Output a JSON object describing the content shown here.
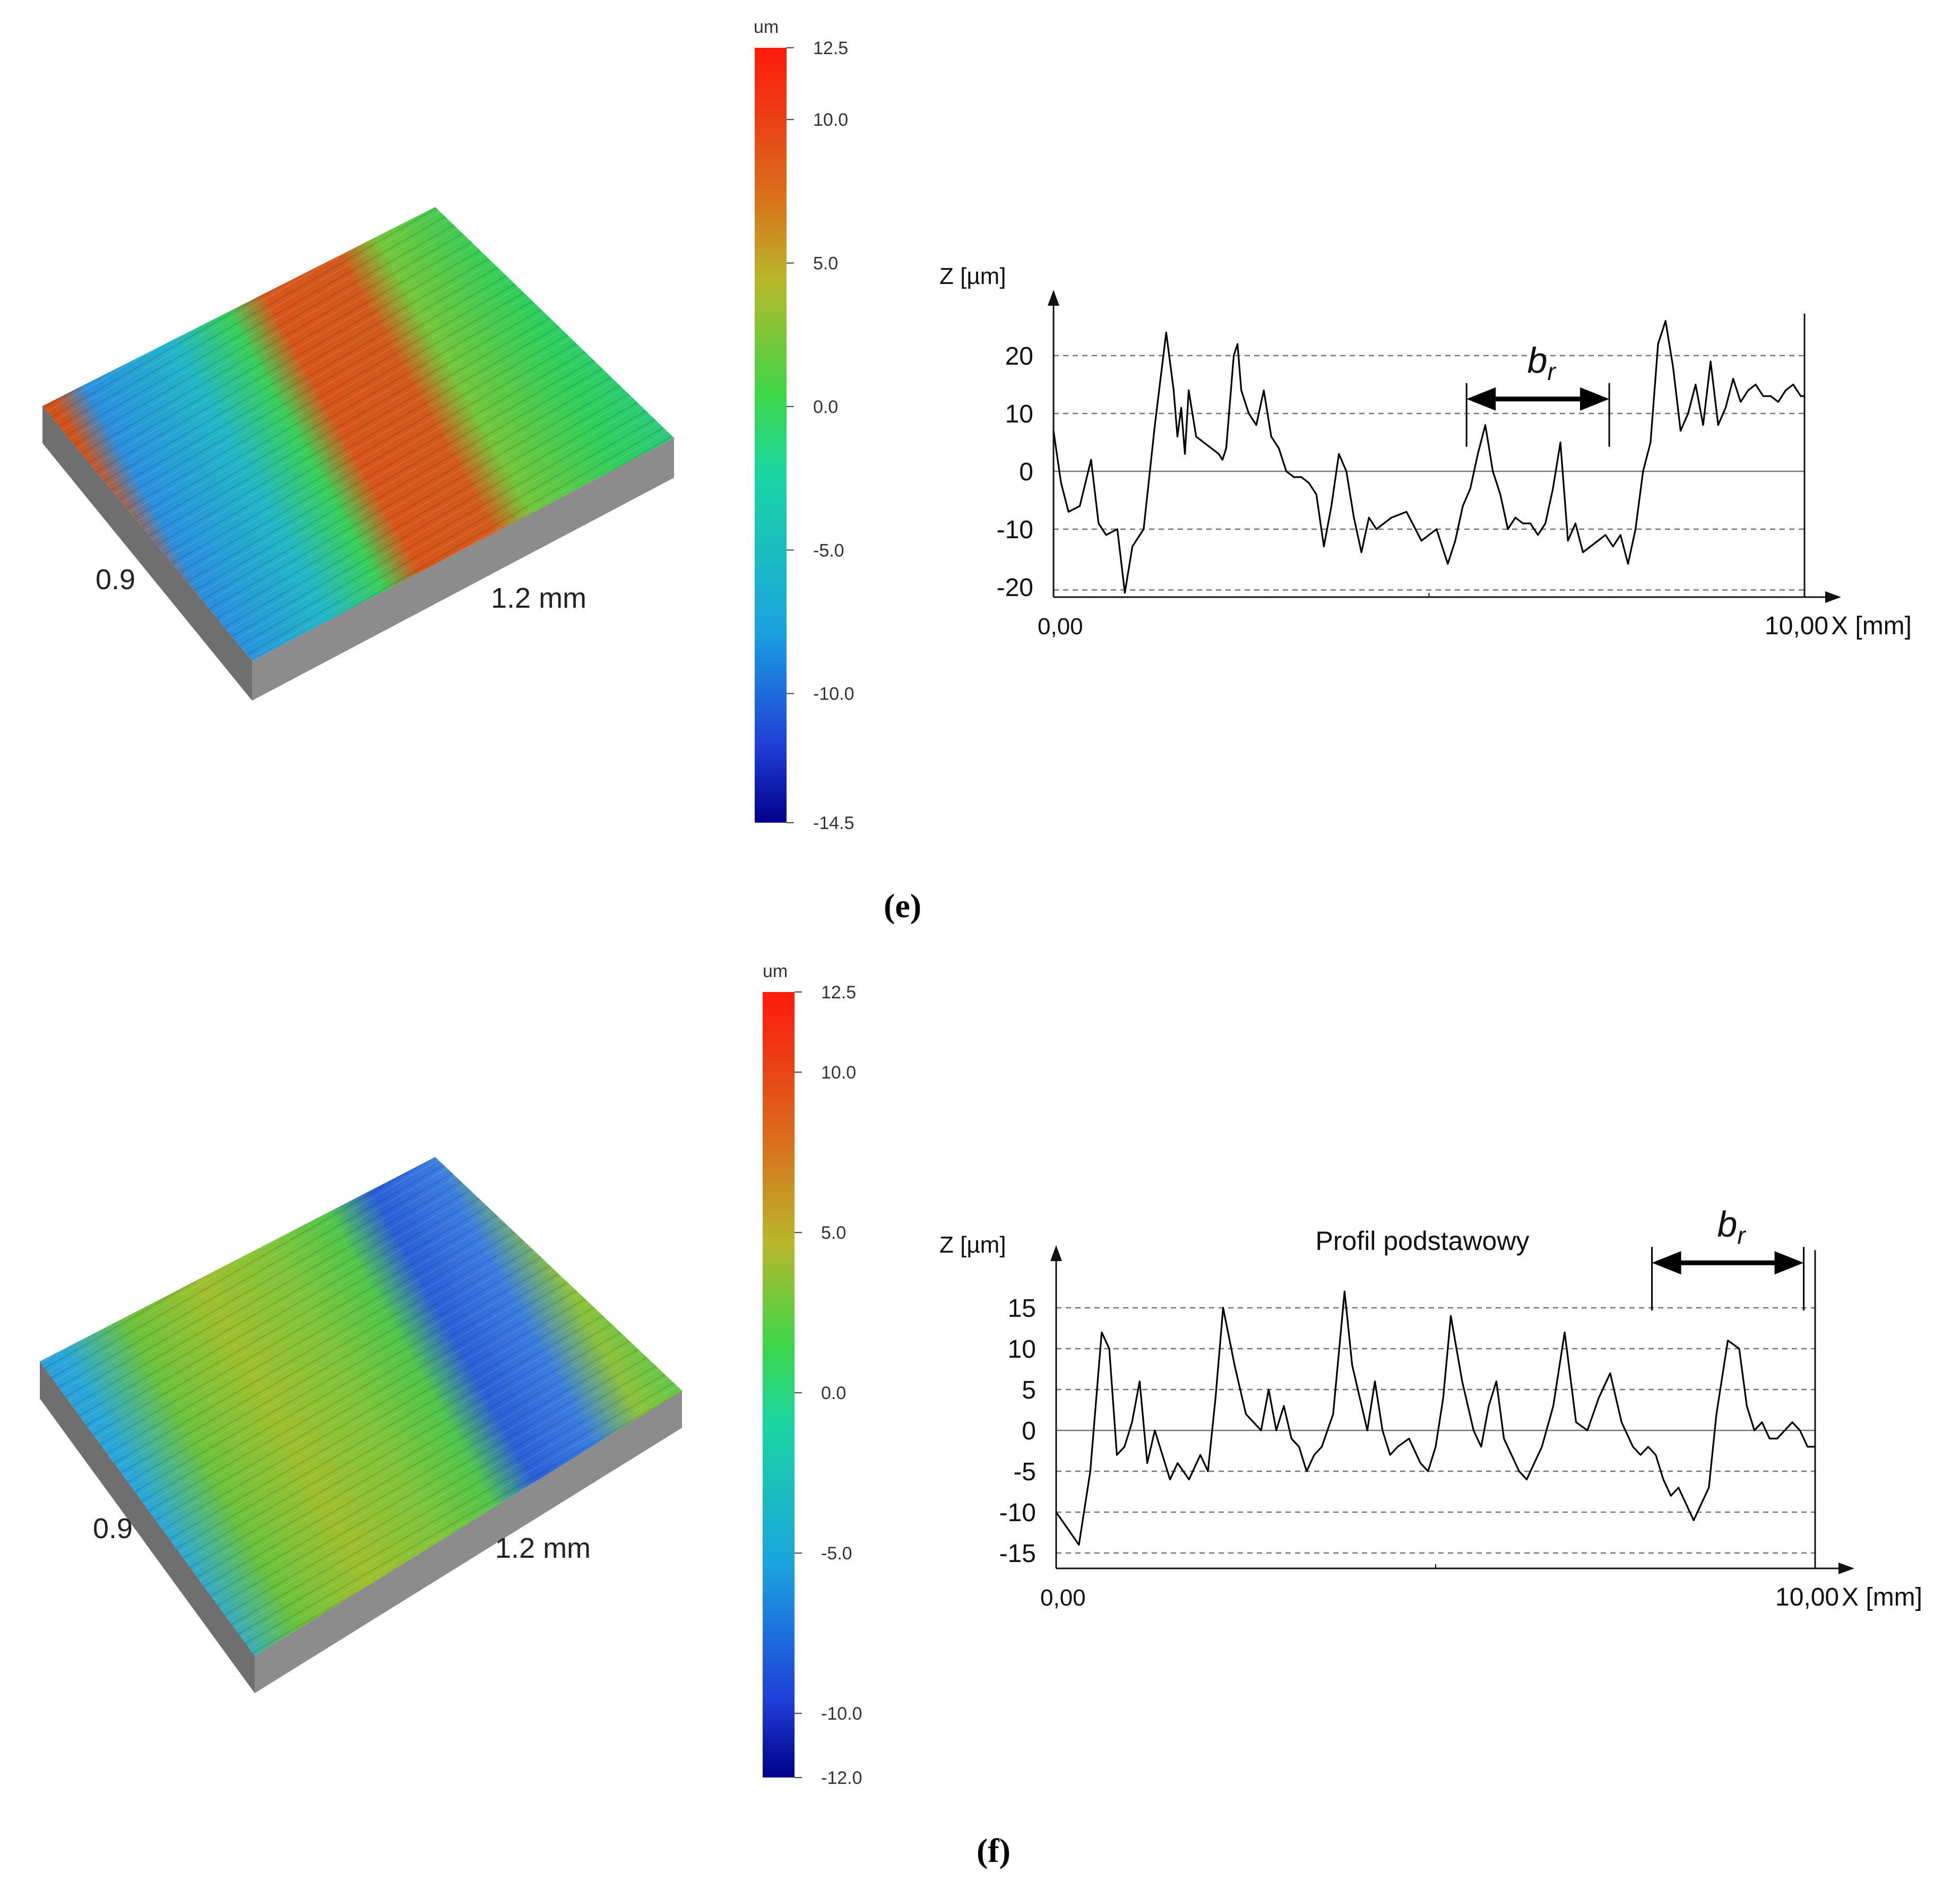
{
  "panels": [
    {
      "id": "e",
      "caption": "(e)",
      "surface": {
        "label_y": "0.9",
        "label_x": "1.2 mm"
      },
      "colorbar": {
        "unit": "um",
        "min": -14.5,
        "max": 12.5,
        "ticks": [
          "12.5",
          "10.0",
          "5.0",
          "0.0",
          "-5.0",
          "-10.0",
          "-14.5"
        ],
        "tick_values": [
          12.5,
          10.0,
          5.0,
          0.0,
          -5.0,
          -10.0,
          -14.5
        ]
      }
    },
    {
      "id": "f",
      "caption": "(f)",
      "surface": {
        "label_y": "0.9",
        "label_x": "1.2 mm"
      },
      "colorbar": {
        "unit": "um",
        "min": -12.0,
        "max": 12.5,
        "ticks": [
          "12.5",
          "10.0",
          "5.0",
          "0.0",
          "-5.0",
          "-10.0",
          "-12.0"
        ],
        "tick_values": [
          12.5,
          10.0,
          5.0,
          0.0,
          -5.0,
          -10.0,
          -12.0
        ]
      }
    }
  ],
  "chart_data": [
    {
      "type": "line",
      "title": "",
      "xlabel": "X [mm]",
      "ylabel": "Z [µm]",
      "x_start_label": "0,00",
      "x_end_label": "10,00",
      "xlim": [
        0,
        10
      ],
      "ylim": [
        -22.5,
        30
      ],
      "yticks": [
        20,
        10,
        0,
        -10,
        -20
      ],
      "ytick_labels": [
        "20",
        "10",
        "0",
        "-10",
        "-20"
      ],
      "grid_lines": [
        20,
        10,
        -10,
        -20.5
      ],
      "zero_line": 0,
      "annotation": {
        "text": "b",
        "subscript": "r",
        "x_start": 5.5,
        "x_end": 7.4,
        "y": 12.5
      },
      "series": [
        {
          "x": [
            0,
            0.1,
            0.2,
            0.35,
            0.5,
            0.6,
            0.7,
            0.85,
            0.95,
            1.05,
            1.1,
            1.2,
            1.35,
            1.5,
            1.6,
            1.65,
            1.7,
            1.75,
            1.8,
            1.9,
            2.0,
            2.1,
            2.2,
            2.25,
            2.3,
            2.4,
            2.45,
            2.5,
            2.6,
            2.7,
            2.8,
            2.9,
            3.0,
            3.1,
            3.2,
            3.3,
            3.4,
            3.5,
            3.6,
            3.7,
            3.8,
            3.9,
            4.0,
            4.1,
            4.2,
            4.3,
            4.5,
            4.7,
            4.9,
            5.1,
            5.25,
            5.35,
            5.45,
            5.55,
            5.65,
            5.75,
            5.85,
            5.95,
            6.05,
            6.15,
            6.25,
            6.35,
            6.45,
            6.55,
            6.65,
            6.75,
            6.85,
            6.95,
            7.05,
            7.15,
            7.25,
            7.35,
            7.45,
            7.55,
            7.65,
            7.75,
            7.85,
            7.95,
            8.05,
            8.15,
            8.25,
            8.35,
            8.45,
            8.55,
            8.65,
            8.75,
            8.85,
            8.95,
            9.05,
            9.15,
            9.25,
            9.35,
            9.45,
            9.55,
            9.65,
            9.75,
            9.85,
            9.95,
            10.0
          ],
          "y": [
            7,
            -2,
            -7,
            -6,
            2,
            -9,
            -11,
            -10,
            -21,
            -13,
            -12,
            -10,
            8,
            24,
            14,
            6,
            11,
            3,
            14,
            6,
            5,
            4,
            3,
            2,
            4,
            20,
            22,
            14,
            10,
            8,
            14,
            6,
            4,
            0,
            -1,
            -1,
            -2,
            -4,
            -13,
            -6,
            3,
            0,
            -8,
            -14,
            -8,
            -10,
            -8,
            -7,
            -12,
            -10,
            -16,
            -12,
            -6,
            -3,
            3,
            8,
            0,
            -4,
            -10,
            -8,
            -9,
            -9,
            -11,
            -9,
            -3,
            5,
            -12,
            -9,
            -14,
            -13,
            -12,
            -11,
            -13,
            -11,
            -16,
            -10,
            0,
            5,
            22,
            26,
            18,
            7,
            10,
            15,
            8,
            19,
            8,
            11,
            16,
            12,
            14,
            15,
            13,
            13,
            12,
            14,
            15,
            13,
            13
          ]
        }
      ]
    },
    {
      "type": "line",
      "title": "Profil podstawowy",
      "xlabel": "X [mm]",
      "ylabel": "Z [µm]",
      "x_start_label": "0,00",
      "x_end_label": "10,00",
      "xlim": [
        0,
        10
      ],
      "ylim": [
        -16.5,
        24
      ],
      "yticks": [
        15,
        10,
        5,
        0,
        -5,
        -10,
        -15
      ],
      "ytick_labels": [
        "15",
        "10",
        "5",
        "0",
        "-5",
        "-10",
        "-15"
      ],
      "grid_lines": [
        15,
        10,
        5,
        -5,
        -10,
        -15
      ],
      "zero_line": 0,
      "annotation": {
        "text": "b",
        "subscript": "r",
        "x_start": 7.85,
        "x_end": 9.85,
        "y": 20.5
      },
      "series": [
        {
          "x": [
            0,
            0.15,
            0.3,
            0.45,
            0.6,
            0.7,
            0.8,
            0.9,
            1.0,
            1.1,
            1.2,
            1.3,
            1.4,
            1.5,
            1.6,
            1.75,
            1.9,
            2.0,
            2.1,
            2.2,
            2.35,
            2.5,
            2.6,
            2.7,
            2.8,
            2.9,
            3.0,
            3.1,
            3.2,
            3.3,
            3.4,
            3.5,
            3.65,
            3.8,
            3.9,
            4.0,
            4.1,
            4.2,
            4.3,
            4.4,
            4.5,
            4.65,
            4.8,
            4.9,
            5.0,
            5.1,
            5.2,
            5.35,
            5.5,
            5.6,
            5.7,
            5.8,
            5.9,
            6.0,
            6.1,
            6.2,
            6.3,
            6.4,
            6.55,
            6.7,
            6.85,
            7.0,
            7.15,
            7.3,
            7.45,
            7.6,
            7.7,
            7.8,
            7.9,
            8.0,
            8.1,
            8.2,
            8.3,
            8.4,
            8.5,
            8.6,
            8.7,
            8.85,
            9.0,
            9.1,
            9.2,
            9.3,
            9.4,
            9.5,
            9.6,
            9.7,
            9.8,
            9.9,
            10.0
          ],
          "y": [
            -10,
            -12,
            -14,
            -5,
            12,
            10,
            -3,
            -2,
            1,
            6,
            -4,
            0,
            -3,
            -6,
            -4,
            -6,
            -3,
            -5,
            4,
            15,
            8,
            2,
            1,
            0,
            5,
            0,
            3,
            -1,
            -2,
            -5,
            -3,
            -2,
            2,
            17,
            8,
            4,
            0,
            6,
            0,
            -3,
            -2,
            -1,
            -4,
            -5,
            -2,
            4,
            14,
            6,
            0,
            -2,
            3,
            6,
            -1,
            -3,
            -5,
            -6,
            -4,
            -2,
            3,
            12,
            1,
            0,
            4,
            7,
            1,
            -2,
            -3,
            -2,
            -3,
            -6,
            -8,
            -7,
            -9,
            -11,
            -9,
            -7,
            2,
            11,
            10,
            3,
            0,
            1,
            -1,
            -1,
            0,
            1,
            0,
            -2,
            -2
          ]
        }
      ]
    }
  ]
}
